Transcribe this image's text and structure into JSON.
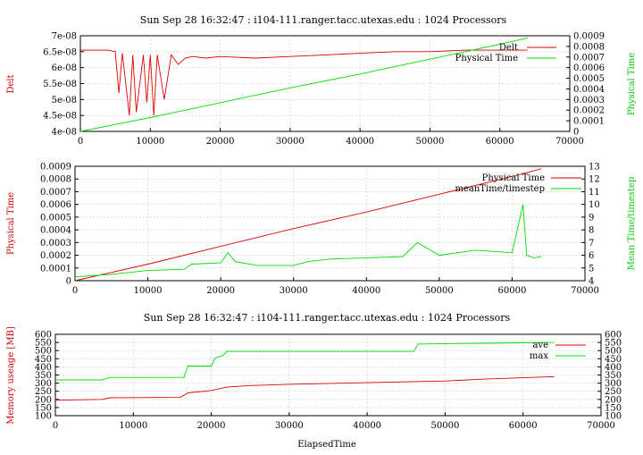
{
  "chart_data": [
    {
      "type": "line",
      "title": "Sun Sep 28 16:32:47 : i104-111.ranger.tacc.utexas.edu : 1024 Processors",
      "xlabel": "",
      "ylabel_left": "Delt",
      "ylabel_right": "Physical Time",
      "xlim": [
        0,
        70000
      ],
      "ylim_left": [
        4e-08,
        7e-08
      ],
      "ylim_right": [
        0,
        0.0009
      ],
      "xticks": [
        "0",
        "10000",
        "20000",
        "30000",
        "40000",
        "50000",
        "60000",
        "70000"
      ],
      "yticks_left": [
        "4e-08",
        "4.5e-08",
        "5e-08",
        "5.5e-08",
        "6e-08",
        "6.5e-08",
        "7e-08"
      ],
      "yticks_right": [
        "0",
        "0.0001",
        "0.0002",
        "0.0003",
        "0.0004",
        "0.0005",
        "0.0006",
        "0.0007",
        "0.0008",
        "0.0009"
      ],
      "grid": true,
      "legend": "top-right",
      "colors": {
        "red": "#dd0000",
        "green": "#00dd00"
      },
      "series": [
        {
          "name": "Delt",
          "axis": "left",
          "color": "red",
          "x": [
            0,
            4000,
            5000,
            5500,
            6000,
            7000,
            7500,
            8000,
            9000,
            9500,
            10000,
            10500,
            11000,
            12000,
            13000,
            14000,
            15000,
            16000,
            18000,
            20000,
            25000,
            30000,
            35000,
            40000,
            45000,
            50000,
            55000,
            60000,
            64000
          ],
          "y": [
            6.55e-08,
            6.55e-08,
            6.5e-08,
            5.2e-08,
            6.45e-08,
            4.5e-08,
            6.4e-08,
            4.6e-08,
            6.4e-08,
            4.9e-08,
            6.4e-08,
            4.5e-08,
            6.4e-08,
            5e-08,
            6.4e-08,
            6.1e-08,
            6.3e-08,
            6.35e-08,
            6.3e-08,
            6.35e-08,
            6.3e-08,
            6.35e-08,
            6.4e-08,
            6.45e-08,
            6.5e-08,
            6.5e-08,
            6.55e-08,
            6.55e-08,
            6.55e-08
          ]
        },
        {
          "name": "Physical Time",
          "axis": "right",
          "color": "green",
          "x": [
            0,
            10000,
            20000,
            30000,
            40000,
            50000,
            60000,
            64000
          ],
          "y": [
            0,
            0.00013,
            0.00027,
            0.00041,
            0.00054,
            0.00068,
            0.00082,
            0.00088
          ]
        }
      ]
    },
    {
      "type": "line",
      "title": "",
      "xlabel": "",
      "ylabel_left": "Physical Time",
      "ylabel_right": "Mean Time/timestep",
      "xlim": [
        0,
        70000
      ],
      "ylim_left": [
        0,
        0.0009
      ],
      "ylim_right": [
        4,
        13
      ],
      "xticks": [
        "0",
        "10000",
        "20000",
        "30000",
        "40000",
        "50000",
        "60000",
        "70000"
      ],
      "yticks_left": [
        "0",
        "0.0001",
        "0.0002",
        "0.0003",
        "0.0004",
        "0.0005",
        "0.0006",
        "0.0007",
        "0.0008",
        "0.0009"
      ],
      "yticks_right": [
        "4",
        "5",
        "6",
        "7",
        "8",
        "9",
        "10",
        "11",
        "12",
        "13"
      ],
      "grid": true,
      "legend": "top-right",
      "colors": {
        "red": "#dd0000",
        "green": "#00dd00"
      },
      "series": [
        {
          "name": "Physical Time",
          "axis": "left",
          "color": "red",
          "x": [
            0,
            10000,
            20000,
            30000,
            40000,
            50000,
            60000,
            64000
          ],
          "y": [
            0,
            0.00013,
            0.00027,
            0.00041,
            0.00054,
            0.00068,
            0.00082,
            0.00088
          ]
        },
        {
          "name": "meanTime/timestep",
          "axis": "right",
          "color": "green",
          "x": [
            0,
            5000,
            10000,
            15000,
            16000,
            20000,
            21000,
            22000,
            25000,
            30000,
            32000,
            35000,
            40000,
            45000,
            47000,
            50000,
            55000,
            60000,
            61500,
            62000,
            63000,
            64000
          ],
          "y": [
            4.3,
            4.5,
            4.8,
            4.9,
            5.3,
            5.4,
            6.2,
            5.5,
            5.2,
            5.2,
            5.5,
            5.7,
            5.8,
            5.9,
            7.0,
            6.0,
            6.4,
            6.2,
            10.0,
            6.0,
            5.8,
            5.9
          ]
        }
      ]
    },
    {
      "type": "line",
      "title": "Sun Sep 28 16:32:47 : i104-111.ranger.tacc.utexas.edu : 1024 Processors",
      "xlabel": "ElapsedTime",
      "ylabel_left": "Memory useage [MB]",
      "ylabel_right": "",
      "xlim": [
        0,
        70000
      ],
      "ylim": [
        100,
        600
      ],
      "xticks": [
        "0",
        "10000",
        "20000",
        "30000",
        "40000",
        "50000",
        "60000",
        "70000"
      ],
      "yticks_left": [
        "100",
        "150",
        "200",
        "250",
        "300",
        "350",
        "400",
        "450",
        "500",
        "550",
        "600"
      ],
      "yticks_right": [
        "100",
        "150",
        "200",
        "250",
        "300",
        "350",
        "400",
        "450",
        "500",
        "550",
        "600"
      ],
      "grid": true,
      "legend": "top-right",
      "colors": {
        "red": "#dd0000",
        "green": "#00dd00"
      },
      "series": [
        {
          "name": "ave",
          "axis": "left",
          "color": "red",
          "x": [
            0,
            6000,
            7000,
            16000,
            17000,
            20000,
            22000,
            25000,
            30000,
            40000,
            50000,
            55000,
            60000,
            64000
          ],
          "y": [
            195,
            200,
            210,
            212,
            240,
            255,
            275,
            285,
            293,
            303,
            313,
            325,
            333,
            340
          ]
        },
        {
          "name": "max",
          "axis": "left",
          "color": "green",
          "x": [
            0,
            6000,
            7000,
            16500,
            17000,
            20000,
            20500,
            21500,
            22000,
            30000,
            40000,
            46000,
            46500,
            50000,
            55000,
            60000,
            64000
          ],
          "y": [
            320,
            320,
            335,
            335,
            405,
            405,
            455,
            470,
            495,
            495,
            495,
            495,
            540,
            543,
            545,
            548,
            550
          ]
        }
      ]
    }
  ]
}
